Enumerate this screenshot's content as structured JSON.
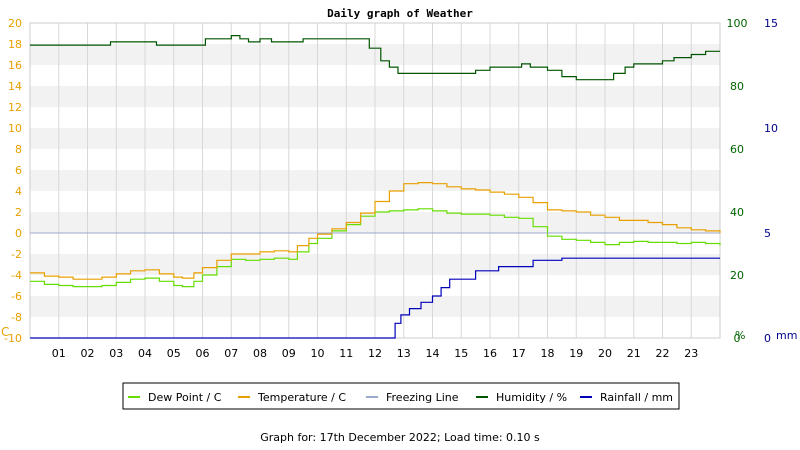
{
  "chart_data": {
    "type": "line",
    "title": "Daily graph of Weather",
    "x": {
      "unit": "hour",
      "range": [
        0,
        24
      ],
      "tick_labels": [
        "01",
        "02",
        "03",
        "04",
        "05",
        "06",
        "07",
        "08",
        "09",
        "10",
        "11",
        "12",
        "13",
        "14",
        "15",
        "16",
        "17",
        "18",
        "19",
        "20",
        "21",
        "22",
        "23"
      ]
    },
    "axes": {
      "left": {
        "unit_label": "C",
        "range": [
          -10,
          20
        ],
        "ticks": [
          "20",
          "18",
          "16",
          "14",
          "12",
          "10",
          "8",
          "6",
          "4",
          "2",
          "0",
          "-2",
          "-4",
          "-6",
          "-8",
          "-10"
        ],
        "color": "#e8a000"
      },
      "right_humidity": {
        "unit_label": "%",
        "range": [
          0,
          100
        ],
        "ticks": [
          "100",
          "80",
          "60",
          "40",
          "20",
          "0"
        ],
        "color": "#006400"
      },
      "right_rain": {
        "unit_label": "mm",
        "range": [
          0,
          15
        ],
        "ticks": [
          "15",
          "10",
          "5",
          "0"
        ],
        "color": "#00008b"
      }
    },
    "grid": true,
    "legend_position": "bottom",
    "series": [
      {
        "name": "Dew Point / C",
        "axis": "left",
        "color": "#66dd00",
        "points": [
          [
            0,
            -4.6
          ],
          [
            0.5,
            -4.9
          ],
          [
            1,
            -5.0
          ],
          [
            1.5,
            -5.1
          ],
          [
            2,
            -5.1
          ],
          [
            2.5,
            -5.0
          ],
          [
            3,
            -4.7
          ],
          [
            3.5,
            -4.4
          ],
          [
            4,
            -4.3
          ],
          [
            4.5,
            -4.6
          ],
          [
            5,
            -5.0
          ],
          [
            5.3,
            -5.1
          ],
          [
            5.7,
            -4.6
          ],
          [
            6,
            -4.0
          ],
          [
            6.5,
            -3.2
          ],
          [
            7,
            -2.5
          ],
          [
            7.5,
            -2.6
          ],
          [
            8,
            -2.5
          ],
          [
            8.5,
            -2.4
          ],
          [
            9,
            -2.5
          ],
          [
            9.3,
            -1.8
          ],
          [
            9.7,
            -1.0
          ],
          [
            10,
            -0.5
          ],
          [
            10.5,
            0.2
          ],
          [
            11,
            0.8
          ],
          [
            11.5,
            1.6
          ],
          [
            12,
            2.0
          ],
          [
            12.5,
            2.1
          ],
          [
            13,
            2.2
          ],
          [
            13.5,
            2.3
          ],
          [
            14,
            2.1
          ],
          [
            14.5,
            1.9
          ],
          [
            15,
            1.8
          ],
          [
            15.5,
            1.8
          ],
          [
            16,
            1.7
          ],
          [
            16.5,
            1.5
          ],
          [
            17,
            1.4
          ],
          [
            17.5,
            0.6
          ],
          [
            18,
            -0.3
          ],
          [
            18.5,
            -0.6
          ],
          [
            19,
            -0.7
          ],
          [
            19.5,
            -0.9
          ],
          [
            20,
            -1.1
          ],
          [
            20.5,
            -0.9
          ],
          [
            21,
            -0.8
          ],
          [
            21.5,
            -0.9
          ],
          [
            22,
            -0.9
          ],
          [
            22.5,
            -1.0
          ],
          [
            23,
            -0.9
          ],
          [
            23.5,
            -1.0
          ],
          [
            24,
            -1.2
          ]
        ]
      },
      {
        "name": "Temperature / C",
        "axis": "left",
        "color": "#e8a000",
        "points": [
          [
            0,
            -3.8
          ],
          [
            0.5,
            -4.1
          ],
          [
            1,
            -4.2
          ],
          [
            1.5,
            -4.4
          ],
          [
            2,
            -4.4
          ],
          [
            2.5,
            -4.2
          ],
          [
            3,
            -3.9
          ],
          [
            3.5,
            -3.6
          ],
          [
            4,
            -3.5
          ],
          [
            4.5,
            -3.9
          ],
          [
            5,
            -4.2
          ],
          [
            5.3,
            -4.3
          ],
          [
            5.7,
            -3.8
          ],
          [
            6,
            -3.3
          ],
          [
            6.5,
            -2.6
          ],
          [
            7,
            -2.0
          ],
          [
            7.5,
            -2.0
          ],
          [
            8,
            -1.8
          ],
          [
            8.5,
            -1.7
          ],
          [
            9,
            -1.8
          ],
          [
            9.3,
            -1.2
          ],
          [
            9.7,
            -0.5
          ],
          [
            10,
            -0.1
          ],
          [
            10.5,
            0.4
          ],
          [
            11,
            1.0
          ],
          [
            11.5,
            1.9
          ],
          [
            12,
            3.0
          ],
          [
            12.5,
            4.0
          ],
          [
            13,
            4.7
          ],
          [
            13.5,
            4.8
          ],
          [
            14,
            4.7
          ],
          [
            14.5,
            4.4
          ],
          [
            15,
            4.2
          ],
          [
            15.5,
            4.1
          ],
          [
            16,
            3.9
          ],
          [
            16.5,
            3.7
          ],
          [
            17,
            3.4
          ],
          [
            17.5,
            2.9
          ],
          [
            18,
            2.2
          ],
          [
            18.5,
            2.1
          ],
          [
            19,
            2.0
          ],
          [
            19.5,
            1.7
          ],
          [
            20,
            1.5
          ],
          [
            20.5,
            1.2
          ],
          [
            21,
            1.2
          ],
          [
            21.5,
            1.0
          ],
          [
            22,
            0.8
          ],
          [
            22.5,
            0.5
          ],
          [
            23,
            0.3
          ],
          [
            23.5,
            0.2
          ],
          [
            24,
            0.0
          ]
        ]
      },
      {
        "name": "Freezing Line",
        "axis": "left",
        "color": "#99aacc",
        "points": [
          [
            0,
            0
          ],
          [
            24,
            0
          ]
        ]
      },
      {
        "name": "Humidity / %",
        "axis": "right_humidity",
        "color": "#005500",
        "points": [
          [
            0,
            93
          ],
          [
            1,
            93
          ],
          [
            2,
            93
          ],
          [
            2.8,
            94
          ],
          [
            4,
            94
          ],
          [
            4.4,
            93
          ],
          [
            6,
            93
          ],
          [
            6.1,
            95
          ],
          [
            6.9,
            95
          ],
          [
            7,
            96
          ],
          [
            7.3,
            95
          ],
          [
            7.6,
            94
          ],
          [
            8,
            95
          ],
          [
            8.4,
            94
          ],
          [
            9,
            94
          ],
          [
            9.5,
            95
          ],
          [
            11,
            95
          ],
          [
            11.5,
            95
          ],
          [
            11.8,
            92
          ],
          [
            12.2,
            88
          ],
          [
            12.5,
            86
          ],
          [
            12.8,
            84
          ],
          [
            13.2,
            84
          ],
          [
            14,
            84
          ],
          [
            15,
            84
          ],
          [
            15.5,
            85
          ],
          [
            16,
            86
          ],
          [
            16.5,
            86
          ],
          [
            17.1,
            87
          ],
          [
            17.4,
            86
          ],
          [
            18,
            85
          ],
          [
            18.5,
            83
          ],
          [
            19,
            82
          ],
          [
            19.8,
            82
          ],
          [
            20.3,
            84
          ],
          [
            20.7,
            86
          ],
          [
            21,
            87
          ],
          [
            21.8,
            87
          ],
          [
            22,
            88
          ],
          [
            22.4,
            89
          ],
          [
            23,
            90
          ],
          [
            23.5,
            91
          ],
          [
            24,
            91
          ]
        ]
      },
      {
        "name": "Rainfall / mm",
        "axis": "right_rain",
        "color": "#0000bb",
        "points": [
          [
            0,
            0
          ],
          [
            12.5,
            0
          ],
          [
            12.7,
            0.7
          ],
          [
            12.9,
            1.1
          ],
          [
            13.2,
            1.4
          ],
          [
            13.6,
            1.7
          ],
          [
            14,
            2.0
          ],
          [
            14.3,
            2.4
          ],
          [
            14.6,
            2.8
          ],
          [
            15.5,
            3.2
          ],
          [
            16.3,
            3.4
          ],
          [
            17.5,
            3.7
          ],
          [
            18.5,
            3.8
          ],
          [
            24,
            3.8
          ]
        ]
      }
    ]
  },
  "footer": "Graph for: 17th December 2022; Load time: 0.10 s"
}
